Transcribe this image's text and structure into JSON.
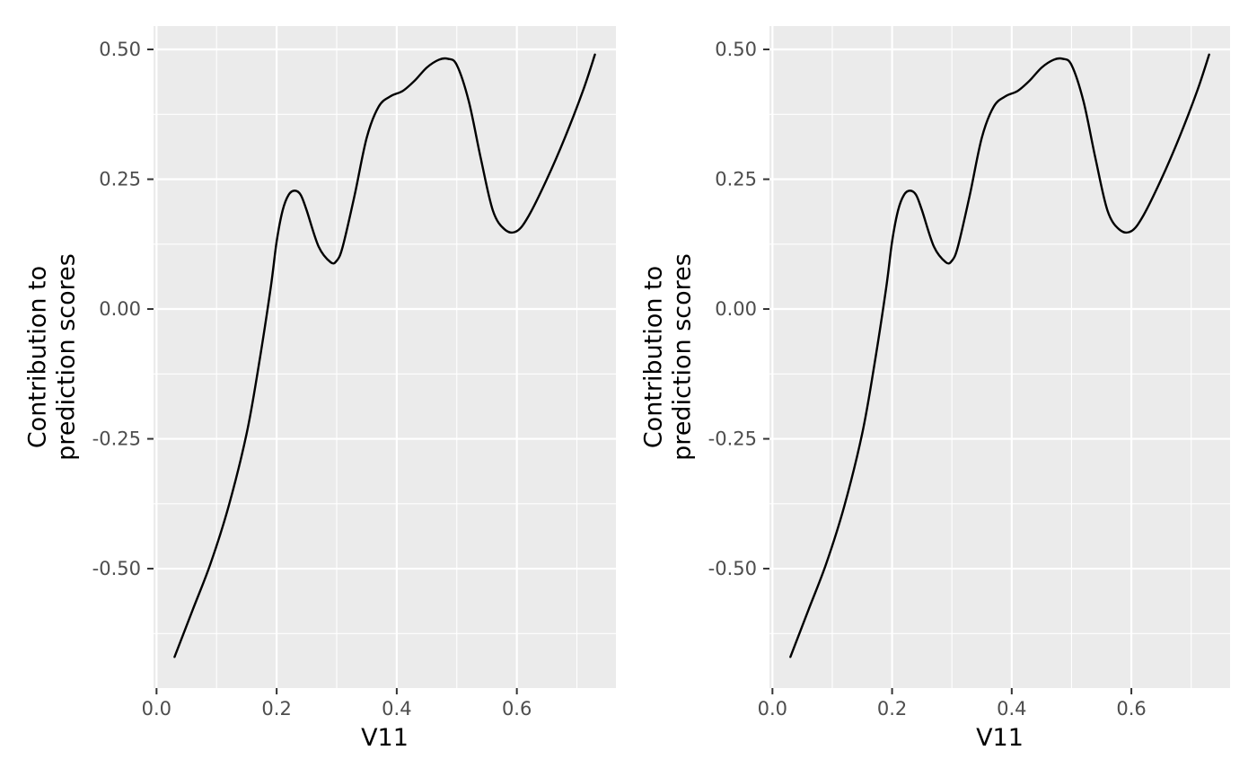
{
  "chart_data": [
    {
      "type": "line",
      "title": "",
      "xlabel": "V11",
      "ylabel_lines": [
        "Contribution to",
        "prediction scores"
      ],
      "xlim": [
        -0.005,
        0.765
      ],
      "ylim": [
        -0.73,
        0.545
      ],
      "x_ticks": [
        0.0,
        0.2,
        0.4,
        0.6
      ],
      "x_tick_labels": [
        "0.0",
        "0.2",
        "0.4",
        "0.6"
      ],
      "y_ticks": [
        0.5,
        0.25,
        0.0,
        -0.25,
        -0.5
      ],
      "y_tick_labels": [
        "0.50",
        "0.25",
        "0.00",
        "-0.25",
        "-0.50"
      ],
      "grid": true,
      "series": [
        {
          "color": "#000000",
          "x": [
            0.03,
            0.06,
            0.09,
            0.12,
            0.15,
            0.17,
            0.19,
            0.2,
            0.21,
            0.22,
            0.23,
            0.24,
            0.25,
            0.27,
            0.29,
            0.3,
            0.31,
            0.33,
            0.35,
            0.37,
            0.39,
            0.41,
            0.43,
            0.45,
            0.47,
            0.485,
            0.5,
            0.52,
            0.54,
            0.56,
            0.58,
            0.6,
            0.62,
            0.65,
            0.68,
            0.71,
            0.73
          ],
          "y": [
            -0.67,
            -0.58,
            -0.49,
            -0.38,
            -0.24,
            -0.11,
            0.04,
            0.13,
            0.19,
            0.22,
            0.228,
            0.22,
            0.19,
            0.12,
            0.09,
            0.093,
            0.12,
            0.22,
            0.33,
            0.39,
            0.41,
            0.42,
            0.44,
            0.465,
            0.48,
            0.482,
            0.47,
            0.4,
            0.29,
            0.19,
            0.153,
            0.15,
            0.18,
            0.25,
            0.33,
            0.42,
            0.49
          ]
        }
      ]
    },
    {
      "type": "line",
      "title": "",
      "xlabel": "V11",
      "ylabel_lines": [
        "Contribution to",
        "prediction scores"
      ],
      "xlim": [
        -0.005,
        0.765
      ],
      "ylim": [
        -0.73,
        0.545
      ],
      "x_ticks": [
        0.0,
        0.2,
        0.4,
        0.6
      ],
      "x_tick_labels": [
        "0.0",
        "0.2",
        "0.4",
        "0.6"
      ],
      "y_ticks": [
        0.5,
        0.25,
        0.0,
        -0.25,
        -0.5
      ],
      "y_tick_labels": [
        "0.50",
        "0.25",
        "0.00",
        "-0.25",
        "-0.50"
      ],
      "grid": true,
      "series": [
        {
          "color": "#000000",
          "x": [
            0.03,
            0.06,
            0.09,
            0.12,
            0.15,
            0.17,
            0.19,
            0.2,
            0.21,
            0.22,
            0.23,
            0.24,
            0.25,
            0.27,
            0.29,
            0.3,
            0.31,
            0.33,
            0.35,
            0.37,
            0.39,
            0.41,
            0.43,
            0.45,
            0.47,
            0.485,
            0.5,
            0.52,
            0.54,
            0.56,
            0.58,
            0.6,
            0.62,
            0.65,
            0.68,
            0.71,
            0.73
          ],
          "y": [
            -0.67,
            -0.58,
            -0.49,
            -0.38,
            -0.24,
            -0.11,
            0.04,
            0.13,
            0.19,
            0.22,
            0.228,
            0.22,
            0.19,
            0.12,
            0.09,
            0.093,
            0.12,
            0.22,
            0.33,
            0.39,
            0.41,
            0.42,
            0.44,
            0.465,
            0.48,
            0.482,
            0.47,
            0.4,
            0.29,
            0.19,
            0.153,
            0.15,
            0.18,
            0.25,
            0.33,
            0.42,
            0.49
          ]
        }
      ]
    }
  ]
}
